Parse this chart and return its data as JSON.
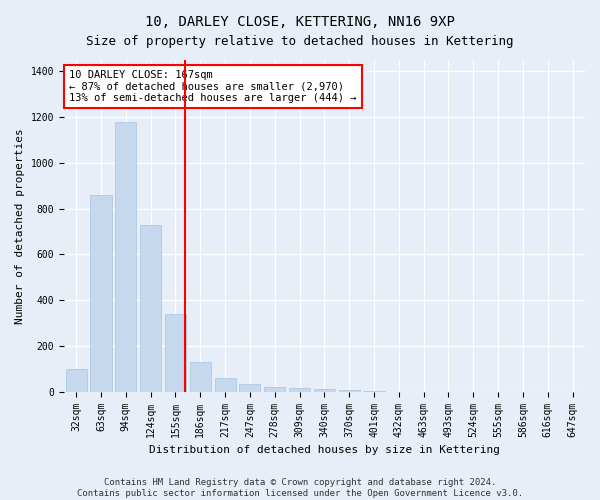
{
  "title": "10, DARLEY CLOSE, KETTERING, NN16 9XP",
  "subtitle": "Size of property relative to detached houses in Kettering",
  "xlabel": "Distribution of detached houses by size in Kettering",
  "ylabel": "Number of detached properties",
  "categories": [
    "32sqm",
    "63sqm",
    "94sqm",
    "124sqm",
    "155sqm",
    "186sqm",
    "217sqm",
    "247sqm",
    "278sqm",
    "309sqm",
    "340sqm",
    "370sqm",
    "401sqm",
    "432sqm",
    "463sqm",
    "493sqm",
    "524sqm",
    "555sqm",
    "586sqm",
    "616sqm",
    "647sqm"
  ],
  "values": [
    100,
    860,
    1180,
    730,
    340,
    130,
    60,
    35,
    20,
    15,
    10,
    8,
    2,
    0,
    0,
    0,
    0,
    0,
    0,
    0,
    0
  ],
  "bar_color": "#c5d8ed",
  "bar_edge_color": "#a8c4df",
  "annotation_line1": "10 DARLEY CLOSE: 167sqm",
  "annotation_line2": "← 87% of detached houses are smaller (2,970)",
  "annotation_line3": "13% of semi-detached houses are larger (444) →",
  "ylim": [
    0,
    1450
  ],
  "yticks": [
    0,
    200,
    400,
    600,
    800,
    1000,
    1200,
    1400
  ],
  "footer1": "Contains HM Land Registry data © Crown copyright and database right 2024.",
  "footer2": "Contains public sector information licensed under the Open Government Licence v3.0.",
  "background_color": "#e8eef8",
  "plot_bg_color": "#e8eef8",
  "grid_color": "#ffffff",
  "title_fontsize": 10,
  "subtitle_fontsize": 9,
  "axis_label_fontsize": 8,
  "tick_fontsize": 7,
  "footer_fontsize": 6.5,
  "annot_fontsize": 7.5
}
